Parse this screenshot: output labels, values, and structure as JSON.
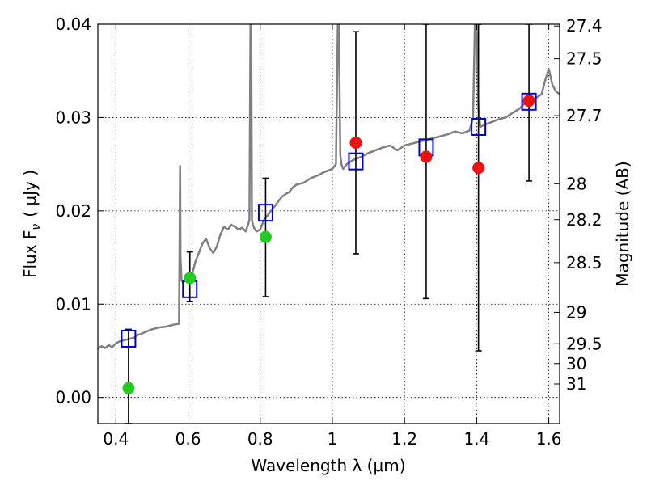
{
  "chart_data": {
    "type": "scatter",
    "xlabel": "Wavelength  λ (μm)",
    "ylabel": "Flux  F",
    "ylabel_sub": "ν",
    "ylabel_unit": "( μJy )",
    "ylabel_right": "Magnitude (AB)",
    "xlim": [
      0.35,
      1.63
    ],
    "ylim": [
      -0.0028,
      0.04
    ],
    "grid": true,
    "x_ticks": [
      0.4,
      0.6,
      0.8,
      1.0,
      1.2,
      1.4,
      1.6
    ],
    "x_tick_labels": [
      "0.4",
      "0.6",
      "0.8",
      "1",
      "1.2",
      "1.4",
      "1.6"
    ],
    "y_ticks": [
      0.0,
      0.01,
      0.02,
      0.03,
      0.04
    ],
    "y_tick_labels": [
      "0.00",
      "0.01",
      "0.02",
      "0.03",
      "0.04"
    ],
    "mag_ticks": [
      27.4,
      27.5,
      27.7,
      28,
      28.2,
      28.5,
      29,
      29.5,
      30,
      31
    ],
    "mag_tick_labels": [
      "27.4",
      "27.5",
      "27.7",
      "28",
      "28.2",
      "28.5",
      "29",
      "29.5",
      "30",
      "31"
    ],
    "series": [
      {
        "style": "line",
        "color": "#808080",
        "x": [
          0.35,
          0.36,
          0.37,
          0.38,
          0.39,
          0.4,
          0.41,
          0.42,
          0.43,
          0.44,
          0.45,
          0.46,
          0.47,
          0.48,
          0.5,
          0.52,
          0.54,
          0.56,
          0.575,
          0.578,
          0.579,
          0.582,
          0.585,
          0.59,
          0.6,
          0.61,
          0.62,
          0.63,
          0.64,
          0.65,
          0.66,
          0.67,
          0.68,
          0.69,
          0.7,
          0.71,
          0.72,
          0.73,
          0.74,
          0.75,
          0.76,
          0.77,
          0.773,
          0.775,
          0.777,
          0.78,
          0.785,
          0.79,
          0.8,
          0.81,
          0.82,
          0.83,
          0.84,
          0.85,
          0.86,
          0.87,
          0.88,
          0.89,
          0.9,
          0.92,
          0.94,
          0.96,
          0.98,
          1.0,
          1.01,
          1.015,
          1.018,
          1.022,
          1.025,
          1.03,
          1.04,
          1.06,
          1.08,
          1.1,
          1.12,
          1.14,
          1.16,
          1.18,
          1.2,
          1.22,
          1.24,
          1.26,
          1.28,
          1.3,
          1.32,
          1.34,
          1.36,
          1.38,
          1.39,
          1.395,
          1.4,
          1.405,
          1.41,
          1.42,
          1.44,
          1.46,
          1.48,
          1.5,
          1.52,
          1.54,
          1.56,
          1.58,
          1.59,
          1.6,
          1.61,
          1.62,
          1.63
        ],
        "y": [
          0.0052,
          0.0055,
          0.0053,
          0.0056,
          0.0054,
          0.0058,
          0.006,
          0.0061,
          0.0062,
          0.0063,
          0.0064,
          0.0067,
          0.0068,
          0.007,
          0.0073,
          0.0075,
          0.0076,
          0.0078,
          0.0079,
          0.0248,
          0.015,
          0.0125,
          0.0124,
          0.0126,
          0.0128,
          0.013,
          0.0145,
          0.0155,
          0.0165,
          0.017,
          0.016,
          0.0155,
          0.0162,
          0.0175,
          0.0183,
          0.018,
          0.0185,
          0.0183,
          0.018,
          0.0182,
          0.0178,
          0.019,
          0.04,
          0.04,
          0.019,
          0.0185,
          0.018,
          0.0178,
          0.018,
          0.019,
          0.0195,
          0.02,
          0.0205,
          0.021,
          0.0215,
          0.0218,
          0.022,
          0.0225,
          0.0228,
          0.023,
          0.0235,
          0.0238,
          0.0242,
          0.0245,
          0.025,
          0.04,
          0.04,
          0.026,
          0.025,
          0.0245,
          0.025,
          0.0255,
          0.0258,
          0.0262,
          0.0265,
          0.0268,
          0.027,
          0.0265,
          0.027,
          0.0272,
          0.0274,
          0.0276,
          0.0278,
          0.028,
          0.0282,
          0.0285,
          0.0283,
          0.0286,
          0.03,
          0.04,
          0.04,
          0.031,
          0.029,
          0.0292,
          0.0295,
          0.0298,
          0.03,
          0.0305,
          0.031,
          0.0318,
          0.032,
          0.0325,
          0.034,
          0.0352,
          0.0335,
          0.0328,
          0.0325
        ]
      },
      {
        "style": "open-square",
        "color": "#0000cc",
        "x": [
          0.435,
          0.605,
          0.815,
          1.065,
          1.26,
          1.405,
          1.545
        ],
        "y": [
          0.0063,
          0.0116,
          0.0198,
          0.0253,
          0.0268,
          0.029,
          0.0317
        ]
      },
      {
        "style": "filled-circle",
        "color": "#22cc22",
        "x": [
          0.435,
          0.605,
          0.815
        ],
        "y": [
          0.001,
          0.0128,
          0.0172
        ]
      },
      {
        "style": "filled-circle",
        "color": "#ee1111",
        "x": [
          1.065,
          1.26,
          1.405,
          1.545
        ],
        "y": [
          0.0273,
          0.0258,
          0.0246,
          0.0318
        ]
      }
    ],
    "error_bars": [
      {
        "x": 0.435,
        "y_low": -0.0028,
        "y_high": 0.0073
      },
      {
        "x": 0.605,
        "y_low": 0.0103,
        "y_high": 0.0156
      },
      {
        "x": 0.815,
        "y_low": 0.0108,
        "y_high": 0.0235
      },
      {
        "x": 1.065,
        "y_low": 0.0154,
        "y_high": 0.0392
      },
      {
        "x": 1.26,
        "y_low": 0.0106,
        "y_high": 0.04
      },
      {
        "x": 1.405,
        "y_low": 0.005,
        "y_high": 0.04
      },
      {
        "x": 1.545,
        "y_low": 0.0232,
        "y_high": 0.04
      }
    ]
  }
}
